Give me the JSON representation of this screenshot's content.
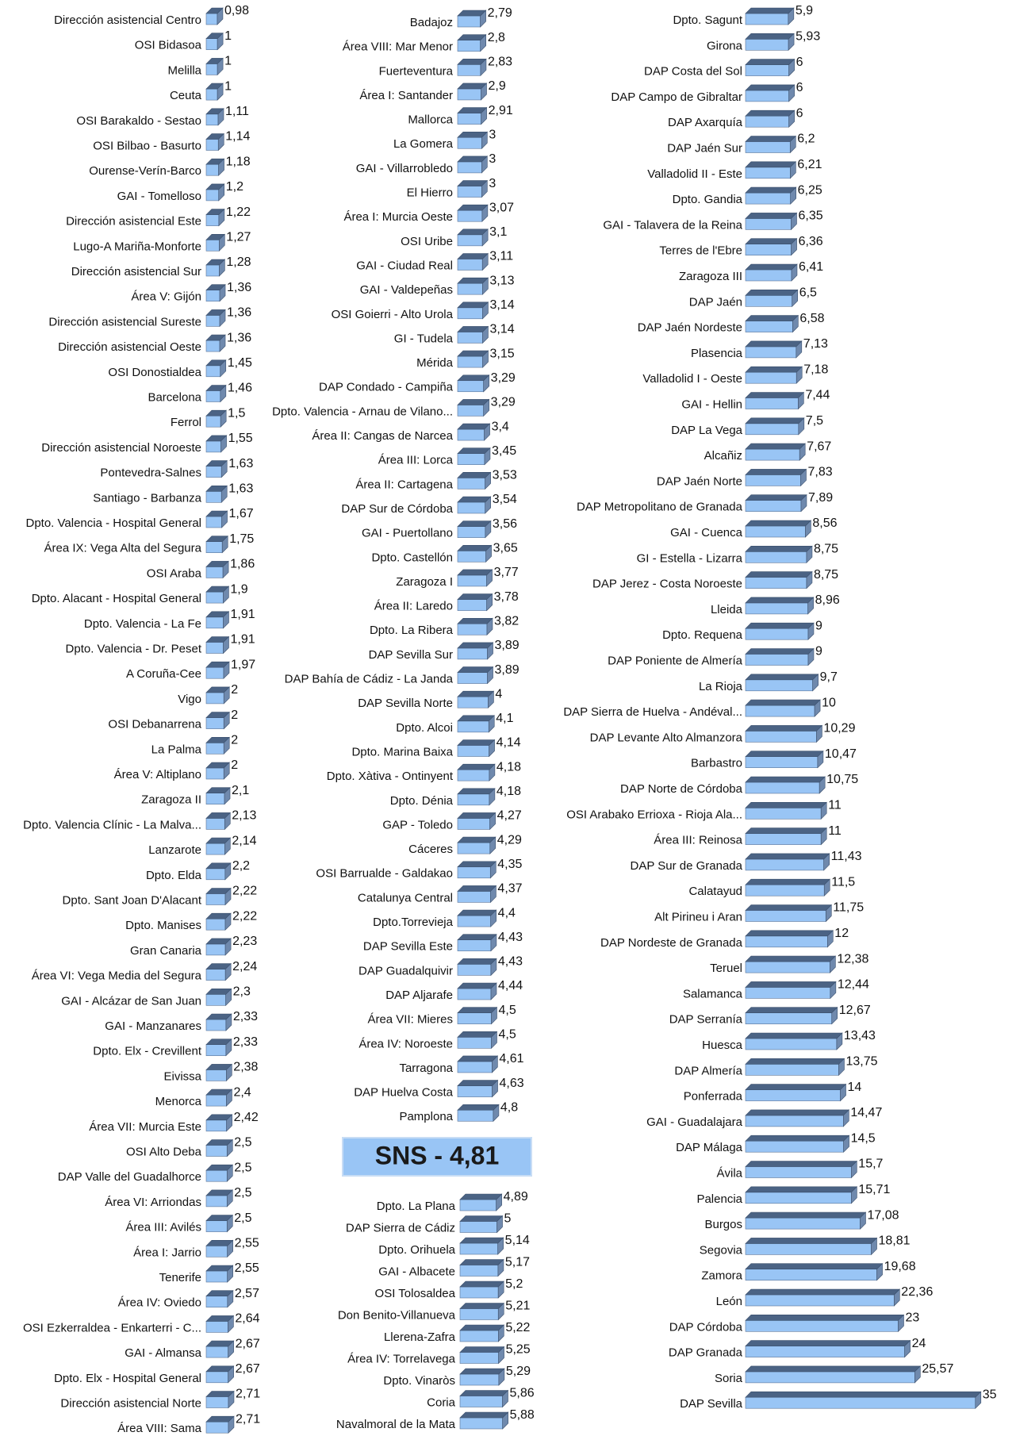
{
  "chart_data": [
    {
      "type": "bar",
      "orientation": "horizontal",
      "color": "#99c5f5",
      "xlim": [
        0,
        37
      ],
      "categories": [
        "Dirección asistencial Centro",
        "OSI Bidasoa",
        "Melilla",
        "Ceuta",
        "OSI Barakaldo - Sestao",
        "OSI Bilbao - Basurto",
        "Ourense-Verín-Barco",
        "GAI - Tomelloso",
        "Dirección asistencial Este",
        "Lugo-A Mariña-Monforte",
        "Dirección asistencial Sur",
        "Área V: Gijón",
        "Dirección asistencial Sureste",
        "Dirección asistencial Oeste",
        "OSI Donostialdea",
        "Barcelona",
        "Ferrol",
        "Dirección asistencial Noroeste",
        "Pontevedra-Salnes",
        "Santiago - Barbanza",
        "Dpto. Valencia - Hospital General",
        "Área IX: Vega Alta del Segura",
        "OSI Araba",
        "Dpto. Alacant - Hospital General",
        "Dpto. Valencia - La Fe",
        "Dpto. Valencia - Dr. Peset",
        "A Coruña-Cee",
        "Vigo",
        "OSI Debanarrena",
        "La Palma",
        "Área V: Altiplano",
        "Zaragoza II",
        "Dpto. Valencia Clínic - La Malva...",
        "Lanzarote",
        "Dpto. Elda",
        "Dpto. Sant Joan D'Alacant",
        "Dpto. Manises",
        "Gran Canaria",
        "Área VI: Vega Media del Segura",
        "GAI - Alcázar de San Juan",
        "GAI - Manzanares",
        "Dpto. Elx - Crevillent",
        "Eivissa",
        "Menorca",
        "Área VII: Murcia Este",
        "OSI Alto Deba",
        "DAP Valle del Guadalhorce",
        "Área VI: Arriondas",
        "Área III: Avilés",
        "Área I: Jarrio",
        "Tenerife",
        "Área IV: Oviedo",
        "OSI Ezkerraldea - Enkarterri - C...",
        "GAI - Almansa",
        "Dpto. Elx - Hospital General",
        "Dirección asistencial Norte",
        "Área VIII: Sama"
      ],
      "values": [
        0.98,
        1,
        1,
        1,
        1.11,
        1.14,
        1.18,
        1.2,
        1.22,
        1.27,
        1.28,
        1.36,
        1.36,
        1.36,
        1.45,
        1.46,
        1.5,
        1.55,
        1.63,
        1.63,
        1.67,
        1.75,
        1.86,
        1.9,
        1.91,
        1.91,
        1.97,
        2,
        2,
        2,
        2,
        2.1,
        2.13,
        2.14,
        2.2,
        2.22,
        2.22,
        2.23,
        2.24,
        2.3,
        2.33,
        2.33,
        2.38,
        2.4,
        2.42,
        2.5,
        2.5,
        2.5,
        2.5,
        2.55,
        2.55,
        2.57,
        2.64,
        2.67,
        2.67,
        2.71,
        2.71
      ],
      "value_labels": [
        "0,98",
        "1",
        "1",
        "1",
        "1,11",
        "1,14",
        "1,18",
        "1,2",
        "1,22",
        "1,27",
        "1,28",
        "1,36",
        "1,36",
        "1,36",
        "1,45",
        "1,46",
        "1,5",
        "1,55",
        "1,63",
        "1,63",
        "1,67",
        "1,75",
        "1,86",
        "1,9",
        "1,91",
        "1,91",
        "1,97",
        "2",
        "2",
        "2",
        "2",
        "2,1",
        "2,13",
        "2,14",
        "2,2",
        "2,22",
        "2,22",
        "2,23",
        "2,24",
        "2,3",
        "2,33",
        "2,33",
        "2,38",
        "2,4",
        "2,42",
        "2,5",
        "2,5",
        "2,5",
        "2,5",
        "2,55",
        "2,55",
        "2,57",
        "2,64",
        "2,67",
        "2,67",
        "2,71",
        "2,71"
      ]
    },
    {
      "type": "bar",
      "orientation": "horizontal",
      "color": "#99c5f5",
      "xlim": [
        0,
        37
      ],
      "annotation": "SNS - 4,81",
      "categories": [
        "Badajoz",
        "Área VIII: Mar Menor",
        "Fuerteventura",
        "Área I: Santander",
        "Mallorca",
        "La Gomera",
        "GAI - Villarrobledo",
        "El Hierro",
        "Área I: Murcia Oeste",
        "OSI Uribe",
        "GAI - Ciudad Real",
        "GAI - Valdepeñas",
        "OSI Goierri - Alto Urola",
        "GI - Tudela",
        "Mérida",
        "DAP Condado - Campiña",
        "Dpto. Valencia - Arnau de Vilano...",
        "Área II: Cangas de Narcea",
        "Área III: Lorca",
        "Área II: Cartagena",
        "DAP Sur de Córdoba",
        "GAI - Puertollano",
        "Dpto. Castellón",
        "Zaragoza I",
        "Área II: Laredo",
        "Dpto. La Ribera",
        "DAP Sevilla Sur",
        "DAP Bahía de Cádiz - La Janda",
        "DAP Sevilla Norte",
        "Dpto. Alcoi",
        "Dpto. Marina Baixa",
        "Dpto. Xàtiva - Ontinyent",
        "Dpto. Dénia",
        "GAP - Toledo",
        "Cáceres",
        "OSI Barrualde - Galdakao",
        "Catalunya Central",
        "Dpto.Torrevieja",
        "DAP Sevilla Este",
        "DAP Guadalquivir",
        "DAP Aljarafe",
        "Área VII: Mieres",
        "Área IV: Noroeste",
        "Tarragona",
        "DAP Huelva Costa",
        "Pamplona"
      ],
      "values": [
        2.79,
        2.8,
        2.83,
        2.9,
        2.91,
        3,
        3,
        3,
        3.07,
        3.1,
        3.11,
        3.13,
        3.14,
        3.14,
        3.15,
        3.29,
        3.29,
        3.4,
        3.45,
        3.53,
        3.54,
        3.56,
        3.65,
        3.77,
        3.78,
        3.82,
        3.89,
        3.89,
        4,
        4.1,
        4.14,
        4.18,
        4.18,
        4.27,
        4.29,
        4.35,
        4.37,
        4.4,
        4.43,
        4.43,
        4.44,
        4.5,
        4.5,
        4.61,
        4.63,
        4.8
      ],
      "value_labels": [
        "2,79",
        "2,8",
        "2,83",
        "2,9",
        "2,91",
        "3",
        "3",
        "3",
        "3,07",
        "3,1",
        "3,11",
        "3,13",
        "3,14",
        "3,14",
        "3,15",
        "3,29",
        "3,29",
        "3,4",
        "3,45",
        "3,53",
        "3,54",
        "3,56",
        "3,65",
        "3,77",
        "3,78",
        "3,82",
        "3,89",
        "3,89",
        "4",
        "4,1",
        "4,14",
        "4,18",
        "4,18",
        "4,27",
        "4,29",
        "4,35",
        "4,37",
        "4,4",
        "4,43",
        "4,43",
        "4,44",
        "4,5",
        "4,5",
        "4,61",
        "4,63",
        "4,8"
      ]
    },
    {
      "type": "bar",
      "orientation": "horizontal",
      "color": "#99c5f5",
      "xlim": [
        0,
        37
      ],
      "categories": [
        "Dpto. La Plana",
        "DAP Sierra de Cádiz",
        "Dpto. Orihuela",
        "GAI - Albacete",
        "OSI Tolosaldea",
        "Don Benito-Villanueva",
        "Llerena-Zafra",
        "Área IV: Torrelavega",
        "Dpto. Vinaròs",
        "Coria",
        "Navalmoral de la Mata"
      ],
      "values": [
        4.89,
        5,
        5.14,
        5.17,
        5.2,
        5.21,
        5.22,
        5.25,
        5.29,
        5.86,
        5.88
      ],
      "value_labels": [
        "4,89",
        "5",
        "5,14",
        "5,17",
        "5,2",
        "5,21",
        "5,22",
        "5,25",
        "5,29",
        "5,86",
        "5,88"
      ]
    },
    {
      "type": "bar",
      "orientation": "horizontal",
      "color": "#99c5f5",
      "xlim": [
        0,
        37
      ],
      "categories": [
        "Dpto. Sagunt",
        "Girona",
        "DAP Costa del Sol",
        "DAP Campo de Gibraltar",
        "DAP Axarquía",
        "DAP Jaén Sur",
        "Valladolid II - Este",
        "Dpto. Gandia",
        "GAI - Talavera de la Reina",
        "Terres de l'Ebre",
        "Zaragoza III",
        "DAP Jaén",
        "DAP Jaén Nordeste",
        "Plasencia",
        "Valladolid I - Oeste",
        "GAI - Hellin",
        "DAP La Vega",
        "Alcañiz",
        "DAP Jaén Norte",
        "DAP Metropolitano de Granada",
        "GAI - Cuenca",
        "GI - Estella - Lizarra",
        "DAP Jerez - Costa Noroeste",
        "Lleida",
        "Dpto. Requena",
        "DAP Poniente de Almería",
        "La Rioja",
        "DAP Sierra de Huelva - Andéval...",
        "DAP Levante Alto Almanzora",
        "Barbastro",
        "DAP Norte de Córdoba",
        "OSI Arabako Errioxa - Rioja Ala...",
        "Área III: Reinosa",
        "DAP Sur de Granada",
        "Calatayud",
        "Alt Pirineu i Aran",
        "DAP Nordeste de Granada",
        "Teruel",
        "Salamanca",
        "DAP Serranía",
        "Huesca",
        "DAP Almería",
        "Ponferrada",
        "GAI - Guadalajara",
        "DAP Málaga",
        "Ávila",
        "Palencia",
        "Burgos",
        "Segovia",
        "Zamora",
        "León",
        "DAP Córdoba",
        "DAP Granada",
        "Soria",
        "DAP Sevilla"
      ],
      "values": [
        5.9,
        5.93,
        6,
        6,
        6,
        6.2,
        6.21,
        6.25,
        6.35,
        6.36,
        6.41,
        6.5,
        6.58,
        7.13,
        7.18,
        7.44,
        7.5,
        7.67,
        7.83,
        7.89,
        8.56,
        8.75,
        8.75,
        8.96,
        9,
        9,
        9.7,
        10,
        10.29,
        10.47,
        10.75,
        11,
        11,
        11.43,
        11.5,
        11.75,
        12,
        12.38,
        12.44,
        12.67,
        13.43,
        13.75,
        14,
        14.47,
        14.5,
        15.7,
        15.71,
        17.08,
        18.81,
        19.68,
        22.36,
        23,
        24,
        25.57,
        35
      ],
      "value_labels": [
        "5,9",
        "5,93",
        "6",
        "6",
        "6",
        "6,2",
        "6,21",
        "6,25",
        "6,35",
        "6,36",
        "6,41",
        "6,5",
        "6,58",
        "7,13",
        "7,18",
        "7,44",
        "7,5",
        "7,67",
        "7,83",
        "7,89",
        "8,56",
        "8,75",
        "8,75",
        "8,96",
        "9",
        "9",
        "9,7",
        "10",
        "10,29",
        "10,47",
        "10,75",
        "11",
        "11",
        "11,43",
        "11,5",
        "11,75",
        "12",
        "12,38",
        "12,44",
        "12,67",
        "13,43",
        "13,75",
        "14",
        "14,47",
        "14,5",
        "15,7",
        "15,71",
        "17,08",
        "18,81",
        "19,68",
        "22,36",
        "23",
        "24",
        "25,57",
        "35"
      ]
    }
  ]
}
